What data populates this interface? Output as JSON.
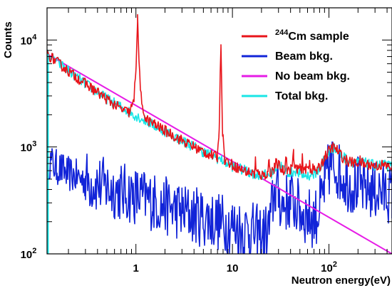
{
  "chart_data": {
    "type": "line",
    "xlabel": "Neutron energy(eV)",
    "ylabel": "Counts",
    "x_scale": "log",
    "y_scale": "log",
    "xlim": [
      0.12,
      450
    ],
    "ylim": [
      100,
      20000
    ],
    "x_ticks": [
      {
        "value": 1,
        "label": "1"
      },
      {
        "value": 10,
        "label": "10"
      },
      {
        "value": 100,
        "label": "10",
        "exp": "2"
      }
    ],
    "y_ticks": [
      {
        "value": 100,
        "label": "10",
        "exp": "2"
      },
      {
        "value": 1000,
        "label": "10",
        "exp": "3"
      },
      {
        "value": 10000,
        "label": "10",
        "exp": "4"
      }
    ],
    "grid": false,
    "legend_position": "top-right",
    "series": [
      {
        "name": "Cm sample",
        "name_prefix": "244",
        "color": "#e8141a",
        "points": [
          [
            0.12,
            7400
          ],
          [
            0.2,
            5100
          ],
          [
            0.3,
            3900
          ],
          [
            0.5,
            2800
          ],
          [
            0.7,
            2250
          ],
          [
            0.85,
            2100
          ],
          [
            0.95,
            2600
          ],
          [
            1.0,
            5500
          ],
          [
            1.04,
            15500
          ],
          [
            1.08,
            6000
          ],
          [
            1.15,
            2300
          ],
          [
            1.3,
            1800
          ],
          [
            1.6,
            1600
          ],
          [
            2,
            1420
          ],
          [
            3,
            1150
          ],
          [
            4,
            1000
          ],
          [
            5,
            900
          ],
          [
            6,
            840
          ],
          [
            7,
            800
          ],
          [
            7.3,
            1600
          ],
          [
            7.6,
            9500
          ],
          [
            7.9,
            1400
          ],
          [
            8.3,
            760
          ],
          [
            10,
            680
          ],
          [
            13,
            600
          ],
          [
            17,
            560
          ],
          [
            17.3,
            760
          ],
          [
            17.6,
            580
          ],
          [
            20,
            540
          ],
          [
            23,
            560
          ],
          [
            24,
            760
          ],
          [
            24.5,
            580
          ],
          [
            27,
            620
          ],
          [
            28,
            700
          ],
          [
            30,
            680
          ],
          [
            33,
            600
          ],
          [
            35,
            600
          ],
          [
            36,
            880
          ],
          [
            37,
            620
          ],
          [
            40,
            600
          ],
          [
            43,
            860
          ],
          [
            44,
            620
          ],
          [
            48,
            640
          ],
          [
            52,
            600
          ],
          [
            53,
            780
          ],
          [
            54,
            640
          ],
          [
            58,
            620
          ],
          [
            62,
            640
          ],
          [
            63,
            780
          ],
          [
            64,
            620
          ],
          [
            70,
            620
          ],
          [
            75,
            600
          ],
          [
            80,
            640
          ],
          [
            90,
            800
          ],
          [
            100,
            920
          ],
          [
            110,
            1000
          ],
          [
            120,
            950
          ],
          [
            135,
            820
          ],
          [
            150,
            750
          ],
          [
            170,
            720
          ],
          [
            190,
            700
          ],
          [
            210,
            740
          ],
          [
            230,
            680
          ],
          [
            260,
            690
          ],
          [
            300,
            660
          ],
          [
            350,
            680
          ],
          [
            400,
            660
          ],
          [
            450,
            650
          ]
        ]
      },
      {
        "name": "Beam bkg.",
        "color": "#1224d8",
        "points": [
          [
            0.12,
            760
          ],
          [
            0.15,
            650
          ],
          [
            0.2,
            560
          ],
          [
            0.3,
            490
          ],
          [
            0.5,
            420
          ],
          [
            0.7,
            380
          ],
          [
            1,
            350
          ],
          [
            1.5,
            310
          ],
          [
            2,
            280
          ],
          [
            3,
            250
          ],
          [
            4,
            230
          ],
          [
            6,
            210
          ],
          [
            8,
            195
          ],
          [
            10,
            185
          ],
          [
            12,
            175
          ],
          [
            15,
            165
          ],
          [
            18,
            155
          ],
          [
            21,
            150
          ],
          [
            24,
            170
          ],
          [
            26,
            300
          ],
          [
            28,
            400
          ],
          [
            30,
            350
          ],
          [
            33,
            290
          ],
          [
            36,
            300
          ],
          [
            40,
            320
          ],
          [
            45,
            290
          ],
          [
            50,
            255
          ],
          [
            55,
            235
          ],
          [
            60,
            225
          ],
          [
            65,
            215
          ],
          [
            70,
            215
          ],
          [
            75,
            230
          ],
          [
            80,
            280
          ],
          [
            85,
            330
          ],
          [
            90,
            430
          ],
          [
            95,
            520
          ],
          [
            100,
            620
          ],
          [
            105,
            700
          ],
          [
            110,
            700
          ],
          [
            120,
            640
          ],
          [
            130,
            560
          ],
          [
            150,
            490
          ],
          [
            170,
            440
          ],
          [
            200,
            440
          ],
          [
            230,
            410
          ],
          [
            260,
            400
          ],
          [
            300,
            385
          ],
          [
            350,
            375
          ],
          [
            400,
            370
          ],
          [
            450,
            365
          ]
        ]
      },
      {
        "name": "No beam bkg.",
        "color": "#e61ce6",
        "points": [
          [
            0.12,
            7400
          ],
          [
            450,
            100
          ]
        ]
      },
      {
        "name": "Total bkg.",
        "color": "#19e6e6",
        "points": [
          [
            0.12,
            7400
          ],
          [
            0.3,
            3900
          ],
          [
            0.5,
            2820
          ],
          [
            1,
            1960
          ],
          [
            2,
            1400
          ],
          [
            3,
            1150
          ],
          [
            5,
            900
          ],
          [
            8,
            740
          ],
          [
            10,
            660
          ],
          [
            15,
            580
          ],
          [
            20,
            540
          ],
          [
            25,
            560
          ],
          [
            28,
            640
          ],
          [
            30,
            680
          ],
          [
            32,
            660
          ],
          [
            35,
            600
          ],
          [
            40,
            570
          ],
          [
            45,
            600
          ],
          [
            50,
            560
          ],
          [
            55,
            540
          ],
          [
            60,
            540
          ],
          [
            70,
            560
          ],
          [
            80,
            620
          ],
          [
            90,
            780
          ],
          [
            100,
            900
          ],
          [
            110,
            980
          ],
          [
            120,
            940
          ],
          [
            140,
            810
          ],
          [
            160,
            750
          ],
          [
            190,
            700
          ],
          [
            220,
            720
          ],
          [
            260,
            690
          ],
          [
            300,
            670
          ],
          [
            350,
            680
          ],
          [
            400,
            665
          ],
          [
            450,
            650
          ]
        ]
      }
    ]
  }
}
